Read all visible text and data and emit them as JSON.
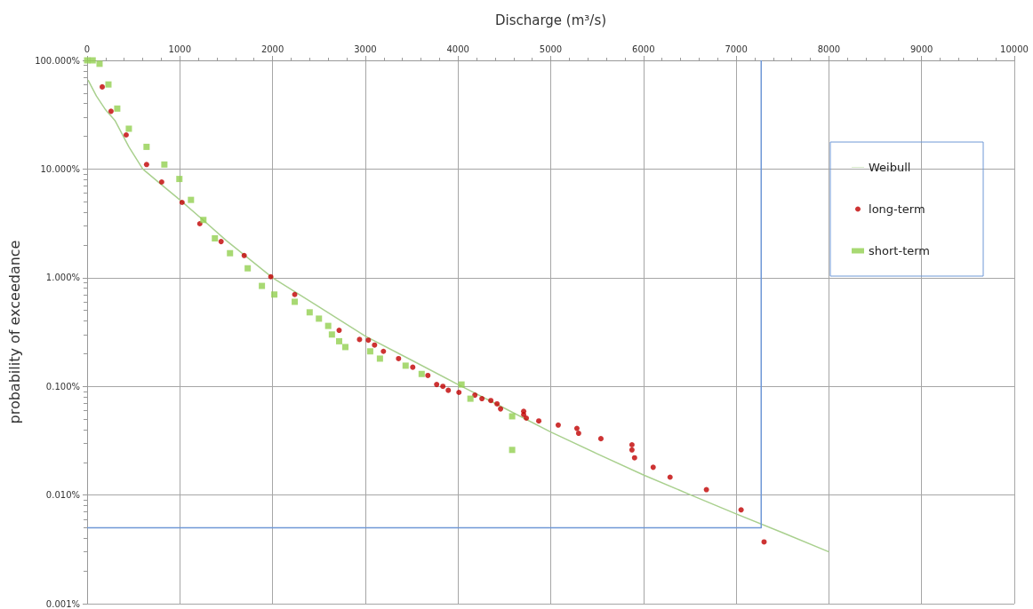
{
  "chart_data": {
    "type": "scatter",
    "xlabel": "Discharge (m³/s)",
    "ylabel": "probability of exceedance",
    "xlim": [
      0,
      10000
    ],
    "xticks": [
      0,
      1000,
      2000,
      3000,
      4000,
      5000,
      6000,
      7000,
      8000,
      9000,
      10000
    ],
    "ylim": [
      0.001,
      100
    ],
    "yticks": [
      {
        "value": 0.001,
        "label": "0.001%"
      },
      {
        "value": 0.01,
        "label": "0.010%"
      },
      {
        "value": 0.1,
        "label": "0.100%"
      },
      {
        "value": 1,
        "label": "1.000%"
      },
      {
        "value": 10,
        "label": "10.000%"
      },
      {
        "value": 100,
        "label": "100.000%"
      }
    ],
    "log": "y",
    "grid": true,
    "legend": "right",
    "series": [
      {
        "name": "Weibull",
        "type": "line",
        "marker": "none",
        "color": "#a9d08e",
        "x": [
          10,
          100,
          200,
          300,
          450,
          600,
          800,
          1000,
          1250,
          1500,
          2000,
          2500,
          3000,
          3500,
          4000,
          4500,
          5000,
          5500,
          6000,
          6500,
          7000,
          7500,
          8000
        ],
        "values": [
          66,
          47,
          35,
          28,
          16,
          10,
          7.2,
          5.2,
          3.4,
          2.2,
          1.0,
          0.54,
          0.29,
          0.174,
          0.104,
          0.063,
          0.038,
          0.024,
          0.0153,
          0.0101,
          0.0067,
          0.0045,
          0.003
        ]
      },
      {
        "name": "long-term",
        "marker": "circle",
        "color": "#c00000",
        "x": [
          163,
          258,
          421,
          641,
          804,
          1024,
          1215,
          1445,
          1694,
          1981,
          2239,
          2718,
          2938,
          3033,
          3100,
          3196,
          3359,
          3512,
          3675,
          3770,
          3837,
          3895,
          4010,
          4182,
          4258,
          4354,
          4421,
          4459,
          4708,
          4708,
          4737,
          4871,
          5081,
          5282,
          5301,
          5541,
          5876,
          5876,
          5904,
          6105,
          6287,
          6679,
          7053,
          7301
        ],
        "values": [
          57,
          34,
          20.6,
          11,
          7.6,
          4.93,
          3.14,
          2.15,
          1.6,
          1.02,
          0.7,
          0.328,
          0.27,
          0.266,
          0.24,
          0.21,
          0.18,
          0.15,
          0.126,
          0.104,
          0.1,
          0.092,
          0.088,
          0.083,
          0.077,
          0.074,
          0.069,
          0.062,
          0.059,
          0.055,
          0.051,
          0.048,
          0.044,
          0.041,
          0.037,
          0.033,
          0.029,
          0.026,
          0.022,
          0.018,
          0.0146,
          0.0112,
          0.0073,
          0.0037
        ]
      },
      {
        "name": "short-term",
        "marker": "square",
        "color": "#92d050",
        "x": [
          0,
          60,
          134,
          230,
          325,
          450,
          641,
          833,
          995,
          1120,
          1254,
          1378,
          1541,
          1732,
          1885,
          2019,
          2239,
          2400,
          2500,
          2600,
          2640,
          2718,
          2785,
          3053,
          3158,
          3435,
          3608,
          4038,
          4134,
          4584,
          4584
        ],
        "values": [
          100,
          100,
          93,
          60,
          36,
          23.5,
          16,
          11,
          8.1,
          5.2,
          3.4,
          2.3,
          1.68,
          1.22,
          0.84,
          0.7,
          0.6,
          0.48,
          0.42,
          0.36,
          0.3,
          0.26,
          0.23,
          0.21,
          0.18,
          0.155,
          0.13,
          0.104,
          0.077,
          0.053,
          0.026
        ]
      },
      {
        "type": "line",
        "marker": "none",
        "color": "#6f98d6",
        "x": [
          0,
          7270,
          7270
        ],
        "values": [
          0.005,
          0.005,
          100
        ]
      }
    ]
  }
}
